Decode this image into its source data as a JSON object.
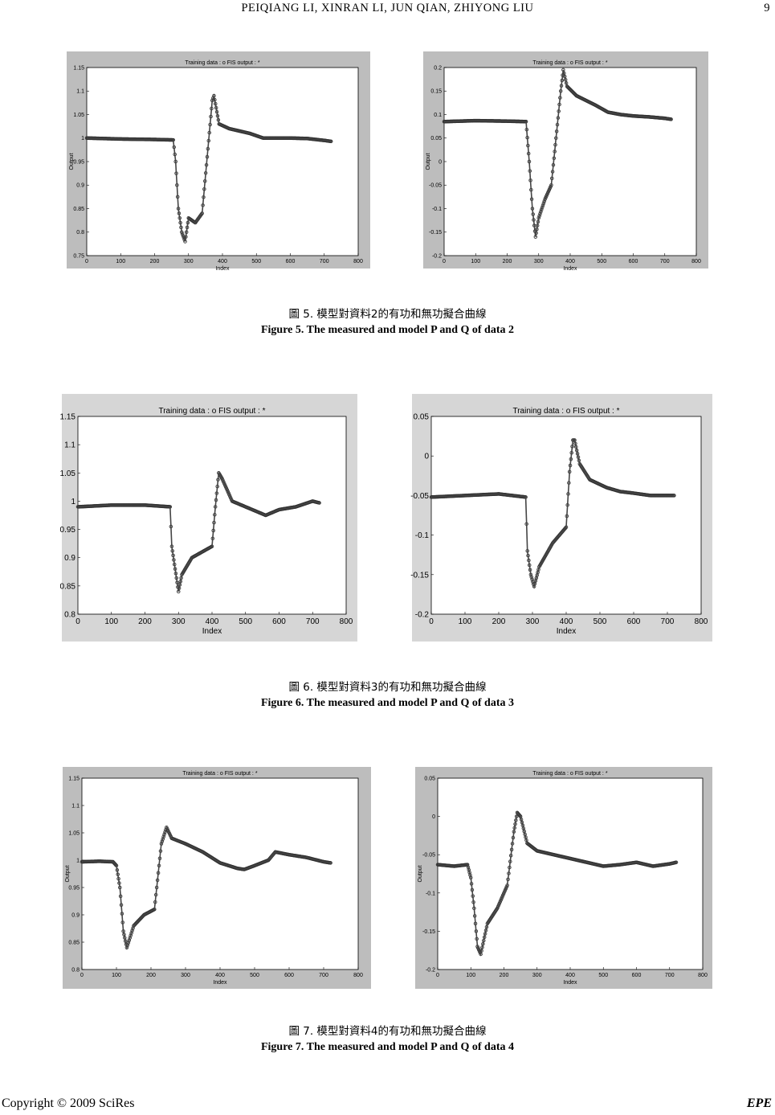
{
  "header": {
    "authors": "PEIQIANG  LI,  XINRAN  LI,  JUN  QIAN,  ZHIYONG  LIU",
    "page": "9"
  },
  "figures": [
    {
      "caption_zh": "圖  5.  模型對資料2的有功和無功擬合曲線",
      "caption_en": "Figure 5. The measured and model P and Q of data 2",
      "plots": [
        {
          "title": "Training data : o   FIS output : *",
          "xlabel": "Index",
          "ylabel": "Output",
          "yticks": [
            "0.75",
            "0.8",
            "0.85",
            "0.9",
            "0.95",
            "1",
            "1.05",
            "1.1",
            "1.15"
          ],
          "xticks": [
            "0",
            "100",
            "200",
            "300",
            "400",
            "500",
            "600",
            "700",
            "800"
          ]
        },
        {
          "title": "Training data : o   FIS output : *",
          "xlabel": "Index",
          "ylabel": "Output",
          "yticks": [
            "-0.2",
            "-0.15",
            "-0.1",
            "-0.05",
            "0",
            "0.05",
            "0.1",
            "0.15",
            "0.2"
          ],
          "xticks": [
            "0",
            "100",
            "200",
            "300",
            "400",
            "500",
            "600",
            "700",
            "800"
          ]
        }
      ]
    },
    {
      "caption_zh": "圖  6.  模型對資料3的有功和無功擬合曲線",
      "caption_en": "Figure 6. The measured and model P and Q of data 3",
      "plots": [
        {
          "title": "Training data : o   FIS output : *",
          "xlabel": "Index",
          "ylabel": "",
          "yticks": [
            "0.8",
            "0.85",
            "0.9",
            "0.95",
            "1",
            "1.05",
            "1.1",
            "1.15"
          ],
          "xticks": [
            "0",
            "100",
            "200",
            "300",
            "400",
            "500",
            "600",
            "700",
            "800"
          ]
        },
        {
          "title": "Training data : o   FIS output : *",
          "xlabel": "Index",
          "ylabel": "",
          "yticks": [
            "-0.2",
            "-0.15",
            "-0.1",
            "-0.05",
            "0",
            "0.05"
          ],
          "xticks": [
            "0",
            "100",
            "200",
            "300",
            "400",
            "500",
            "600",
            "700",
            "800"
          ]
        }
      ]
    },
    {
      "caption_zh": "圖  7.  模型對資料4的有功和無功擬合曲線",
      "caption_en": "Figure 7. The measured and model P and Q of data 4",
      "plots": [
        {
          "title": "Training data : o   FIS output : *",
          "xlabel": "Index",
          "ylabel": "Output",
          "yticks": [
            "0.8",
            "0.85",
            "0.9",
            "0.95",
            "1",
            "1.05",
            "1.1",
            "1.15"
          ],
          "xticks": [
            "0",
            "100",
            "200",
            "300",
            "400",
            "500",
            "600",
            "700",
            "800"
          ]
        },
        {
          "title": "Training data : o   FIS output : *",
          "xlabel": "Index",
          "ylabel": "Output",
          "yticks": [
            "-0.2",
            "-0.15",
            "-0.1",
            "-0.05",
            "0",
            "0.05"
          ],
          "xticks": [
            "0",
            "100",
            "200",
            "300",
            "400",
            "500",
            "600",
            "700",
            "800"
          ]
        }
      ]
    }
  ],
  "chart_data": [
    {
      "type": "scatter",
      "title": "Training data : o   FIS output : *",
      "xlabel": "Index",
      "ylabel": "Output",
      "xlim": [
        0,
        800
      ],
      "ylim": [
        0.75,
        1.15
      ],
      "x": [
        0,
        100,
        200,
        255,
        262,
        270,
        280,
        290,
        300,
        320,
        340,
        355,
        370,
        375,
        390,
        420,
        450,
        480,
        520,
        560,
        600,
        650,
        700,
        720
      ],
      "y": [
        1.0,
        0.998,
        0.997,
        0.996,
        0.95,
        0.85,
        0.8,
        0.78,
        0.83,
        0.82,
        0.84,
        0.96,
        1.08,
        1.09,
        1.03,
        1.02,
        1.015,
        1.01,
        1.0,
        1.0,
        1.0,
        0.999,
        0.995,
        0.993
      ]
    },
    {
      "type": "scatter",
      "title": "Training data : o   FIS output : *",
      "xlabel": "Index",
      "ylabel": "Output",
      "xlim": [
        0,
        800
      ],
      "ylim": [
        -0.2,
        0.2
      ],
      "x": [
        0,
        100,
        200,
        260,
        270,
        280,
        290,
        300,
        320,
        340,
        370,
        378,
        390,
        420,
        450,
        480,
        520,
        560,
        600,
        650,
        700,
        720
      ],
      "y": [
        0.085,
        0.087,
        0.086,
        0.085,
        0.0,
        -0.1,
        -0.16,
        -0.12,
        -0.08,
        -0.05,
        0.15,
        0.195,
        0.16,
        0.14,
        0.13,
        0.12,
        0.105,
        0.1,
        0.097,
        0.095,
        0.092,
        0.09
      ]
    },
    {
      "type": "scatter",
      "title": "Training data : o   FIS output : *",
      "xlabel": "Index",
      "ylabel": "",
      "xlim": [
        0,
        800
      ],
      "ylim": [
        0.8,
        1.15
      ],
      "x": [
        0,
        100,
        200,
        275,
        280,
        290,
        300,
        310,
        340,
        400,
        410,
        420,
        430,
        460,
        500,
        540,
        560,
        600,
        650,
        700,
        720
      ],
      "y": [
        0.99,
        0.993,
        0.993,
        0.99,
        0.92,
        0.88,
        0.84,
        0.87,
        0.9,
        0.92,
        0.99,
        1.05,
        1.04,
        1.0,
        0.99,
        0.98,
        0.975,
        0.985,
        0.99,
        1.0,
        0.997
      ]
    },
    {
      "type": "scatter",
      "title": "Training data : o   FIS output : *",
      "xlabel": "Index",
      "ylabel": "",
      "xlim": [
        0,
        800
      ],
      "ylim": [
        -0.2,
        0.05
      ],
      "x": [
        0,
        100,
        200,
        280,
        285,
        295,
        305,
        320,
        360,
        400,
        410,
        420,
        425,
        440,
        470,
        520,
        560,
        600,
        650,
        700,
        720
      ],
      "y": [
        -0.052,
        -0.05,
        -0.048,
        -0.052,
        -0.12,
        -0.15,
        -0.165,
        -0.14,
        -0.11,
        -0.09,
        -0.02,
        0.02,
        0.02,
        -0.01,
        -0.03,
        -0.04,
        -0.045,
        -0.047,
        -0.05,
        -0.05,
        -0.05
      ]
    },
    {
      "type": "scatter",
      "title": "Training data : o   FIS output : *",
      "xlabel": "Index",
      "ylabel": "Output",
      "xlim": [
        0,
        800
      ],
      "ylim": [
        0.8,
        1.15
      ],
      "x": [
        0,
        50,
        90,
        100,
        110,
        120,
        130,
        150,
        180,
        210,
        230,
        245,
        260,
        300,
        350,
        400,
        450,
        470,
        500,
        540,
        560,
        600,
        650,
        700,
        720
      ],
      "y": [
        0.997,
        0.998,
        0.997,
        0.99,
        0.95,
        0.87,
        0.84,
        0.88,
        0.9,
        0.91,
        1.03,
        1.06,
        1.04,
        1.03,
        1.015,
        0.995,
        0.985,
        0.983,
        0.99,
        1.0,
        1.015,
        1.01,
        1.005,
        0.997,
        0.995
      ]
    },
    {
      "type": "scatter",
      "title": "Training data : o   FIS output : *",
      "xlabel": "Index",
      "ylabel": "Output",
      "xlim": [
        0,
        800
      ],
      "ylim": [
        -0.2,
        0.05
      ],
      "x": [
        0,
        50,
        90,
        100,
        110,
        120,
        130,
        150,
        180,
        210,
        230,
        240,
        250,
        270,
        300,
        350,
        400,
        450,
        500,
        550,
        600,
        650,
        700,
        720
      ],
      "y": [
        -0.063,
        -0.065,
        -0.063,
        -0.08,
        -0.12,
        -0.17,
        -0.18,
        -0.14,
        -0.12,
        -0.09,
        -0.02,
        0.005,
        0.0,
        -0.035,
        -0.045,
        -0.05,
        -0.055,
        -0.06,
        -0.065,
        -0.063,
        -0.06,
        -0.065,
        -0.062,
        -0.06
      ]
    }
  ]
}
